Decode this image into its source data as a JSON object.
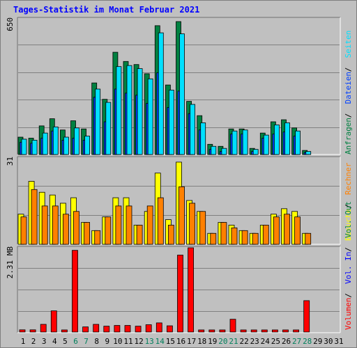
{
  "title": "Tages-Statistik im Monat Februar 2021",
  "colors": {
    "hits": "#008040",
    "files": "#0040ff",
    "pages": "#00e0ff",
    "visits": "#ffff00",
    "sites": "#ff8000",
    "kbin": "#ff0000",
    "kbout": "#0000ff",
    "background": "#c0c0c0",
    "weekend": "#00805c",
    "weekday": "#000000"
  },
  "chart_data": [
    {
      "type": "bar",
      "panel": "top",
      "scale_label": "650",
      "ylim": [
        0,
        650
      ],
      "categories": [
        1,
        2,
        3,
        4,
        5,
        6,
        7,
        8,
        9,
        10,
        11,
        12,
        13,
        14,
        15,
        16,
        17,
        18,
        19,
        20,
        21,
        22,
        23,
        24,
        25,
        26,
        27,
        28,
        29,
        30,
        31
      ],
      "series": [
        {
          "name": "Anfragen",
          "values": [
            85,
            80,
            140,
            175,
            120,
            165,
            125,
            350,
            270,
            500,
            455,
            440,
            395,
            630,
            340,
            650,
            260,
            190,
            50,
            40,
            125,
            125,
            30,
            105,
            160,
            170,
            130,
            20,
            0,
            0,
            0
          ]
        },
        {
          "name": "Dateien",
          "values": [
            60,
            55,
            80,
            115,
            70,
            80,
            70,
            280,
            160,
            320,
            300,
            290,
            250,
            400,
            230,
            310,
            200,
            120,
            25,
            15,
            100,
            100,
            15,
            80,
            100,
            110,
            90,
            10,
            0,
            0,
            0
          ]
        },
        {
          "name": "Seiten",
          "values": [
            75,
            70,
            105,
            135,
            85,
            130,
            90,
            320,
            255,
            430,
            435,
            420,
            370,
            595,
            315,
            590,
            245,
            155,
            40,
            30,
            115,
            120,
            25,
            95,
            145,
            155,
            115,
            15,
            0,
            0,
            0
          ]
        }
      ]
    },
    {
      "type": "bar",
      "panel": "middle",
      "scale_label": "31",
      "ylim": [
        0,
        31
      ],
      "categories": [
        1,
        2,
        3,
        4,
        5,
        6,
        7,
        8,
        9,
        10,
        11,
        12,
        13,
        14,
        15,
        16,
        17,
        18,
        19,
        20,
        21,
        22,
        23,
        24,
        25,
        26,
        27,
        28,
        29,
        30,
        31
      ],
      "series": [
        {
          "name": "Besuche",
          "values": [
            11,
            23,
            19,
            18,
            15,
            17,
            8,
            5,
            10,
            17,
            17,
            7,
            12,
            26,
            9,
            30,
            16,
            12,
            4,
            8,
            7,
            5,
            4,
            7,
            11,
            13,
            12,
            4,
            0,
            0,
            0
          ]
        },
        {
          "name": "Rechner",
          "values": [
            10,
            20,
            14,
            14,
            11,
            12,
            8,
            5,
            10,
            14,
            14,
            7,
            14,
            17,
            7,
            21,
            15,
            12,
            4,
            8,
            6,
            5,
            4,
            7,
            10,
            11,
            10,
            4,
            0,
            0,
            0
          ]
        }
      ]
    },
    {
      "type": "bar",
      "panel": "bottom",
      "scale_label": "2.31 MB",
      "ylim": [
        0,
        2.31
      ],
      "categories": [
        1,
        2,
        3,
        4,
        5,
        6,
        7,
        8,
        9,
        10,
        11,
        12,
        13,
        14,
        15,
        16,
        17,
        18,
        19,
        20,
        21,
        22,
        23,
        24,
        25,
        26,
        27,
        28,
        29,
        30,
        31
      ],
      "series": [
        {
          "name": "Volumen",
          "values": [
            0.06,
            0.06,
            0.21,
            0.58,
            0.04,
            2.24,
            0.14,
            0.21,
            0.16,
            0.18,
            0.18,
            0.16,
            0.2,
            0.25,
            0.17,
            2.11,
            2.31,
            0.04,
            0.03,
            0.03,
            0.35,
            0.04,
            0.04,
            0.05,
            0.05,
            0.05,
            0.05,
            0.86,
            0,
            0,
            0
          ]
        }
      ]
    }
  ],
  "legend": {
    "top": [
      {
        "label": "Anfragen",
        "color": "#008040"
      },
      {
        "label": "Dateien",
        "color": "#0040ff"
      },
      {
        "label": "Seiten",
        "color": "#00e0ff"
      }
    ],
    "middle": [
      {
        "label": "Besuche",
        "color": "#ffff00"
      },
      {
        "label": "Rechner",
        "color": "#ff8000"
      }
    ],
    "bottom": [
      {
        "label": "Volumen",
        "color": "#ff0000"
      },
      {
        "label": "Vol. In",
        "color": "#0000ff"
      },
      {
        "label": "Vol. Out",
        "color": "#008040"
      }
    ]
  },
  "weekend_days": [
    6,
    7,
    13,
    14,
    20,
    21,
    27,
    28
  ]
}
